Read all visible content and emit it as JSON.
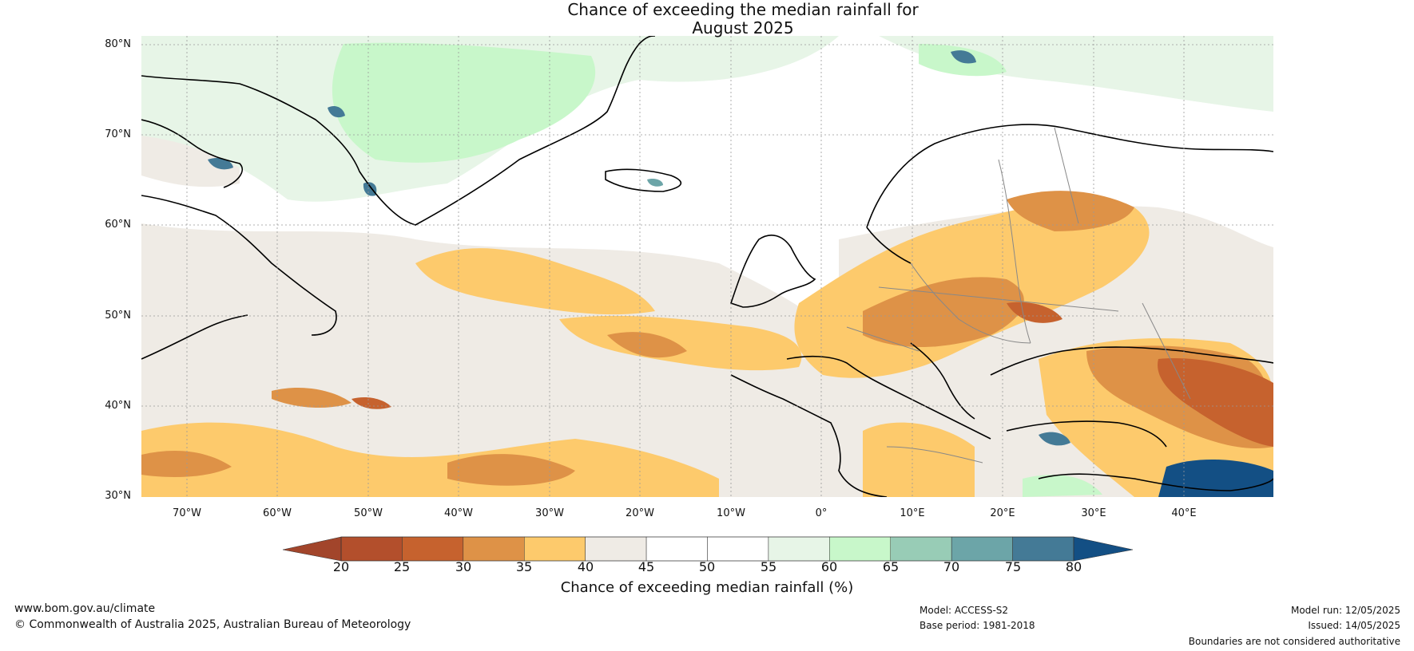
{
  "header": {
    "title_line1": "Chance of exceeding the median rainfall for",
    "title_line2": "August 2025"
  },
  "map": {
    "region": "North Atlantic and Europe",
    "lat_labels": [
      "80°N",
      "70°N",
      "60°N",
      "50°N",
      "40°N",
      "30°N"
    ],
    "lon_labels": [
      "70°W",
      "60°W",
      "50°W",
      "40°W",
      "30°W",
      "20°W",
      "10°W",
      "0°",
      "10°E",
      "20°E",
      "30°E",
      "40°E"
    ],
    "lat_range": [
      30,
      81
    ],
    "lon_range": [
      -75,
      50
    ]
  },
  "colorbar": {
    "title": "Chance of exceeding median rainfall (%)",
    "ticks": [
      "20",
      "25",
      "30",
      "35",
      "40",
      "45",
      "50",
      "55",
      "60",
      "65",
      "70",
      "75",
      "80"
    ],
    "colors": [
      "#a2452b",
      "#b34f2c",
      "#c6622e",
      "#de9247",
      "#fdca6c",
      "#efebe5",
      "#ffffff",
      "#ffffff",
      "#e7f5e7",
      "#c8f7ca",
      "#98ccb6",
      "#6ca5a8",
      "#447a96",
      "#134f84"
    ]
  },
  "footer": {
    "website": "www.bom.gov.au/climate",
    "copyright": "© Commonwealth of Australia 2025, Australian Bureau of Meteorology",
    "model": "Model: ACCESS-S2",
    "base_period": "Base period: 1981-2018",
    "model_run": "Model run: 12/05/2025",
    "issued": "Issued: 14/05/2025",
    "disclaimer": "Boundaries are not considered authoritative"
  }
}
